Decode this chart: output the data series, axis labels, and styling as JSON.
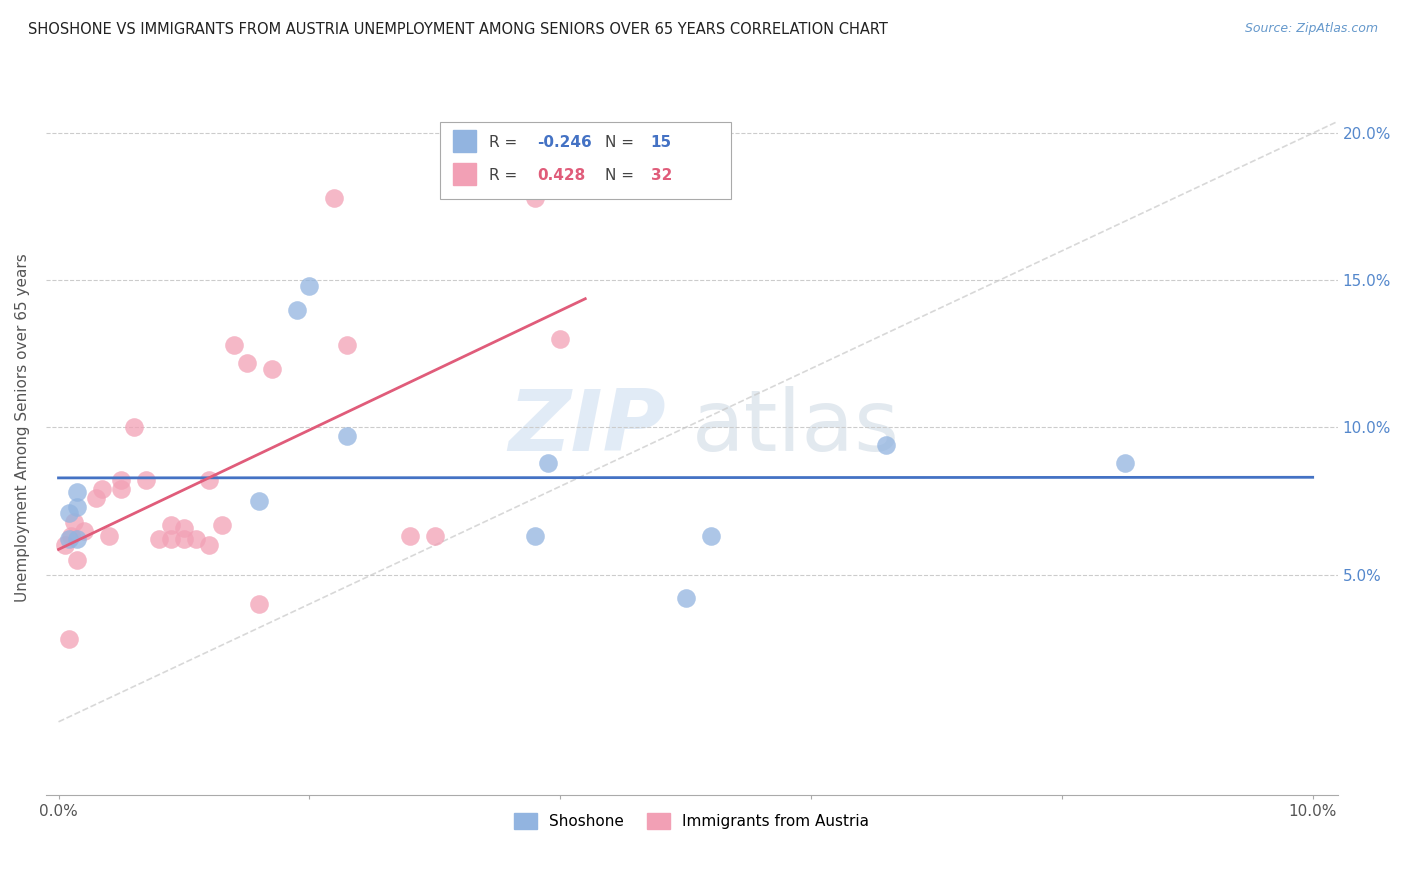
{
  "title": "SHOSHONE VS IMMIGRANTS FROM AUSTRIA UNEMPLOYMENT AMONG SENIORS OVER 65 YEARS CORRELATION CHART",
  "source": "Source: ZipAtlas.com",
  "ylabel": "Unemployment Among Seniors over 65 years",
  "watermark": "ZIPatlas",
  "legend1_label": "Shoshone",
  "legend2_label": "Immigrants from Austria",
  "r1": "-0.246",
  "n1": "15",
  "r2": "0.428",
  "n2": "32",
  "xlim": [
    -0.001,
    0.102
  ],
  "ylim": [
    -0.025,
    0.225
  ],
  "yticks": [
    0.05,
    0.1,
    0.15,
    0.2
  ],
  "ytick_labels": [
    "5.0%",
    "10.0%",
    "15.0%",
    "20.0%"
  ],
  "xticks": [
    0.0,
    0.02,
    0.04,
    0.06,
    0.08,
    0.1
  ],
  "xtick_labels": [
    "0.0%",
    "",
    "",
    "",
    "",
    "10.0%"
  ],
  "color_blue": "#92b4e0",
  "color_pink": "#f2a0b5",
  "line_blue": "#4472c4",
  "line_pink": "#e05c7a",
  "line_diag": "#c8c8c8",
  "shoshone_x": [
    0.0008,
    0.0008,
    0.0015,
    0.0015,
    0.0015,
    0.016,
    0.019,
    0.02,
    0.023,
    0.039,
    0.038,
    0.05,
    0.052,
    0.066,
    0.085
  ],
  "shoshone_y": [
    0.062,
    0.071,
    0.073,
    0.078,
    0.062,
    0.075,
    0.14,
    0.148,
    0.097,
    0.088,
    0.063,
    0.042,
    0.063,
    0.094,
    0.088
  ],
  "austria_x": [
    0.0005,
    0.0008,
    0.001,
    0.0012,
    0.0015,
    0.002,
    0.003,
    0.0035,
    0.004,
    0.005,
    0.005,
    0.006,
    0.007,
    0.008,
    0.009,
    0.009,
    0.01,
    0.01,
    0.011,
    0.012,
    0.012,
    0.013,
    0.014,
    0.015,
    0.016,
    0.017,
    0.022,
    0.023,
    0.028,
    0.03,
    0.038,
    0.04
  ],
  "austria_y": [
    0.06,
    0.028,
    0.063,
    0.068,
    0.055,
    0.065,
    0.076,
    0.079,
    0.063,
    0.079,
    0.082,
    0.1,
    0.082,
    0.062,
    0.062,
    0.067,
    0.062,
    0.066,
    0.062,
    0.06,
    0.082,
    0.067,
    0.128,
    0.122,
    0.04,
    0.12,
    0.178,
    0.128,
    0.063,
    0.063,
    0.178,
    0.13
  ]
}
